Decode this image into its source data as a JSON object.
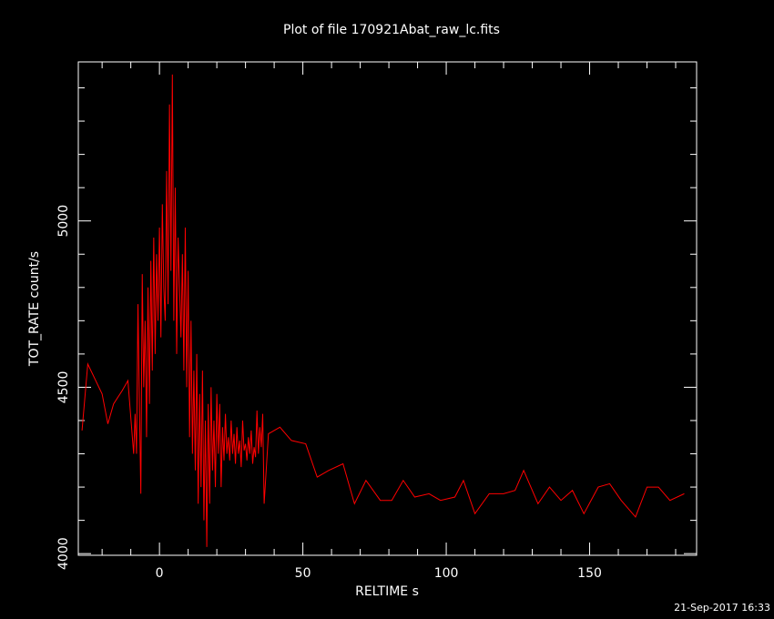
{
  "chart_data": {
    "type": "line",
    "title": "Plot of file 170921Abat_raw_lc.fits",
    "x_label": "RELTIME  s",
    "y_label": "TOT_RATE  count/s",
    "footer": "21-Sep-2017 16:33",
    "xlim": [
      -28.3,
      187.3
    ],
    "ylim": [
      3995,
      5478
    ],
    "xticks": [
      0,
      50,
      100,
      150
    ],
    "yticks": [
      4000,
      4500,
      5000
    ],
    "xminorticks": [
      -20,
      -10,
      10,
      20,
      30,
      40,
      60,
      70,
      80,
      90,
      110,
      120,
      130,
      140,
      160,
      170,
      180
    ],
    "yminorticks": [
      4100,
      4200,
      4300,
      4400,
      4600,
      4700,
      4800,
      4900,
      5100,
      5200,
      5300,
      5400
    ],
    "series": [
      {
        "name": "TOT_RATE",
        "color": "#ff0000",
        "x": [
          -27,
          -25,
          -20,
          -18,
          -16,
          -13,
          -11,
          -9,
          -8.5,
          -8,
          -7.5,
          -7,
          -6.5,
          -6,
          -5.5,
          -5,
          -4.5,
          -4,
          -3.5,
          -3,
          -2.5,
          -2,
          -1.5,
          -1,
          -0.5,
          0,
          0.5,
          1,
          1.5,
          2,
          2.5,
          3,
          3.5,
          4,
          4.5,
          5,
          5.5,
          6,
          6.5,
          7,
          7.5,
          8,
          8.5,
          9,
          9.5,
          10,
          10.5,
          11,
          11.5,
          12,
          12.5,
          13,
          13.5,
          14,
          14.5,
          15,
          15.5,
          16,
          16.5,
          17,
          17.5,
          18,
          18.5,
          19,
          19.5,
          20,
          20.5,
          21,
          21.5,
          22,
          22.5,
          23,
          23.5,
          24,
          24.5,
          25,
          25.5,
          26,
          26.5,
          27,
          27.5,
          28,
          28.5,
          29,
          29.5,
          30,
          30.5,
          31,
          31.5,
          32,
          32.5,
          33,
          33.5,
          34,
          34.5,
          35,
          35.5,
          36,
          36.5,
          38,
          42,
          46,
          51,
          55,
          59,
          64,
          68,
          72,
          77,
          81,
          85,
          89,
          94,
          98,
          103,
          106,
          110,
          115,
          120,
          124,
          127,
          132,
          136,
          140,
          144,
          148,
          153,
          157,
          161,
          166,
          170,
          174,
          178,
          183
        ],
        "values": [
          4370,
          4570,
          4480,
          4390,
          4450,
          4490,
          4520,
          4300,
          4420,
          4300,
          4750,
          4450,
          4180,
          4840,
          4500,
          4700,
          4350,
          4800,
          4450,
          4880,
          4550,
          4950,
          4600,
          4900,
          4700,
          4980,
          4650,
          5050,
          4800,
          4700,
          5150,
          4750,
          5350,
          4850,
          5440,
          4700,
          5100,
          4600,
          4950,
          4800,
          4650,
          4900,
          4550,
          4980,
          4500,
          4850,
          4350,
          4700,
          4300,
          4550,
          4250,
          4600,
          4150,
          4480,
          4200,
          4550,
          4100,
          4400,
          4020,
          4450,
          4150,
          4500,
          4250,
          4400,
          4200,
          4480,
          4300,
          4450,
          4200,
          4380,
          4280,
          4420,
          4300,
          4350,
          4280,
          4400,
          4300,
          4360,
          4270,
          4380,
          4300,
          4340,
          4260,
          4400,
          4310,
          4330,
          4280,
          4350,
          4300,
          4370,
          4270,
          4320,
          4290,
          4430,
          4300,
          4380,
          4320,
          4420,
          4150,
          4360,
          4380,
          4340,
          4330,
          4230,
          4250,
          4270,
          4150,
          4220,
          4160,
          4160,
          4220,
          4170,
          4180,
          4160,
          4170,
          4220,
          4120,
          4180,
          4180,
          4190,
          4250,
          4150,
          4200,
          4160,
          4190,
          4120,
          4200,
          4210,
          4160,
          4110,
          4200,
          4200,
          4160,
          4180
        ]
      }
    ]
  }
}
